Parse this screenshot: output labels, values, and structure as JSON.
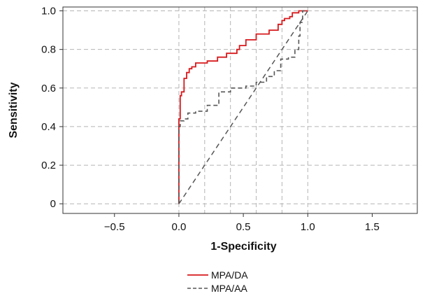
{
  "chart_data": {
    "type": "line",
    "xlabel": "1-Specificity",
    "ylabel": "Sensitivity",
    "xlim": [
      -0.9,
      1.85
    ],
    "ylim": [
      -0.05,
      1.02
    ],
    "grid": true,
    "legend_position": "bottom",
    "x_ticks": [
      {
        "value": -0.5,
        "label": "−0.5"
      },
      {
        "value": 0.0,
        "label": "0.0"
      },
      {
        "value": 0.5,
        "label": "0.5"
      },
      {
        "value": 1.0,
        "label": "1.0"
      },
      {
        "value": 1.5,
        "label": "1.5"
      }
    ],
    "y_ticks": [
      {
        "value": 0,
        "label": "0"
      },
      {
        "value": 0.2,
        "label": "0.2"
      },
      {
        "value": 0.4,
        "label": "0.4"
      },
      {
        "value": 0.6,
        "label": "0.6"
      },
      {
        "value": 0.8,
        "label": "0.8"
      },
      {
        "value": 1.0,
        "label": "1.0"
      }
    ],
    "x_gridlines": [
      0,
      0.2,
      0.4,
      0.6,
      0.8,
      1.0
    ],
    "y_gridlines": [
      0,
      0.2,
      0.4,
      0.6,
      0.8,
      1.0
    ],
    "reference_line": {
      "x": [
        0,
        1
      ],
      "y": [
        0,
        1
      ],
      "color": "#555555",
      "style": "dashed"
    },
    "series": [
      {
        "name": "MPA/DA",
        "color": "#d7191c",
        "style": "solid",
        "x": [
          0,
          0,
          0.01,
          0.01,
          0.02,
          0.02,
          0.04,
          0.04,
          0.06,
          0.06,
          0.08,
          0.08,
          0.1,
          0.1,
          0.13,
          0.13,
          0.22,
          0.22,
          0.3,
          0.3,
          0.37,
          0.37,
          0.45,
          0.45,
          0.47,
          0.47,
          0.52,
          0.52,
          0.58,
          0.58,
          0.6,
          0.6,
          0.7,
          0.7,
          0.77,
          0.77,
          0.8,
          0.8,
          0.82,
          0.82,
          0.86,
          0.86,
          0.88,
          0.88,
          0.93,
          0.93,
          1.0
        ],
        "y": [
          0,
          0.44,
          0.44,
          0.56,
          0.56,
          0.58,
          0.58,
          0.65,
          0.65,
          0.68,
          0.68,
          0.7,
          0.7,
          0.71,
          0.71,
          0.73,
          0.73,
          0.74,
          0.74,
          0.76,
          0.76,
          0.78,
          0.78,
          0.8,
          0.8,
          0.82,
          0.82,
          0.85,
          0.85,
          0.85,
          0.85,
          0.88,
          0.88,
          0.9,
          0.9,
          0.93,
          0.93,
          0.95,
          0.95,
          0.96,
          0.96,
          0.97,
          0.97,
          0.99,
          0.99,
          1.0,
          1.0
        ]
      },
      {
        "name": "MPA/AA",
        "color": "#555555",
        "style": "dashed",
        "x": [
          0,
          0,
          0.01,
          0.01,
          0.04,
          0.04,
          0.07,
          0.07,
          0.13,
          0.13,
          0.22,
          0.22,
          0.29,
          0.29,
          0.31,
          0.31,
          0.4,
          0.4,
          0.52,
          0.52,
          0.6,
          0.6,
          0.68,
          0.68,
          0.74,
          0.74,
          0.79,
          0.79,
          0.85,
          0.85,
          0.9,
          0.9,
          0.93,
          0.93,
          0.94,
          0.94,
          0.96,
          0.96,
          1.0
        ],
        "y": [
          0,
          0.4,
          0.4,
          0.43,
          0.43,
          0.44,
          0.44,
          0.47,
          0.47,
          0.48,
          0.48,
          0.51,
          0.51,
          0.51,
          0.51,
          0.58,
          0.58,
          0.6,
          0.6,
          0.61,
          0.61,
          0.63,
          0.63,
          0.66,
          0.66,
          0.69,
          0.69,
          0.75,
          0.75,
          0.76,
          0.76,
          0.8,
          0.8,
          0.87,
          0.87,
          0.94,
          0.94,
          1.0,
          1.0
        ]
      }
    ]
  }
}
